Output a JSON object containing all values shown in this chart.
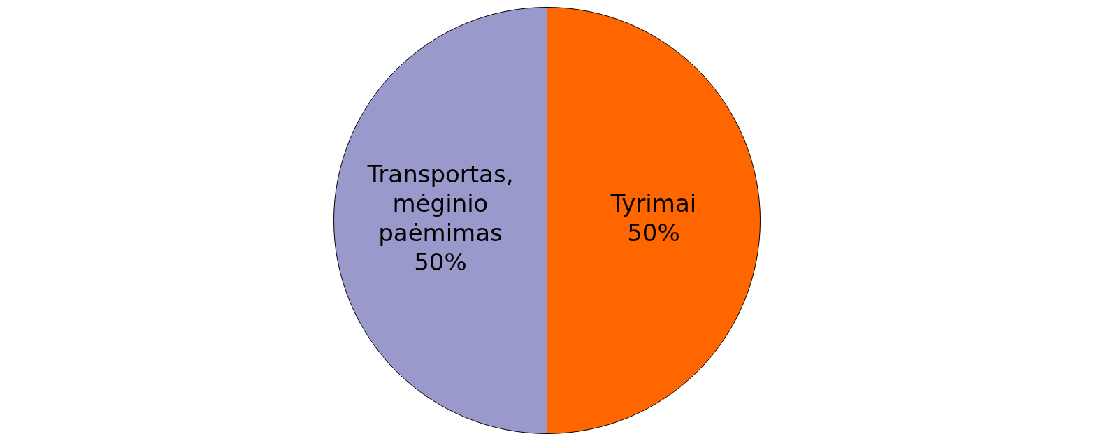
{
  "chart_data": {
    "type": "pie",
    "categories": [
      "Transportas, mėginio paėmimas",
      "Tyrimai"
    ],
    "values": [
      50,
      50
    ],
    "colors": [
      "#9999cc",
      "#ff6600"
    ],
    "value_labels": [
      "50%",
      "50%"
    ],
    "legend": false
  }
}
